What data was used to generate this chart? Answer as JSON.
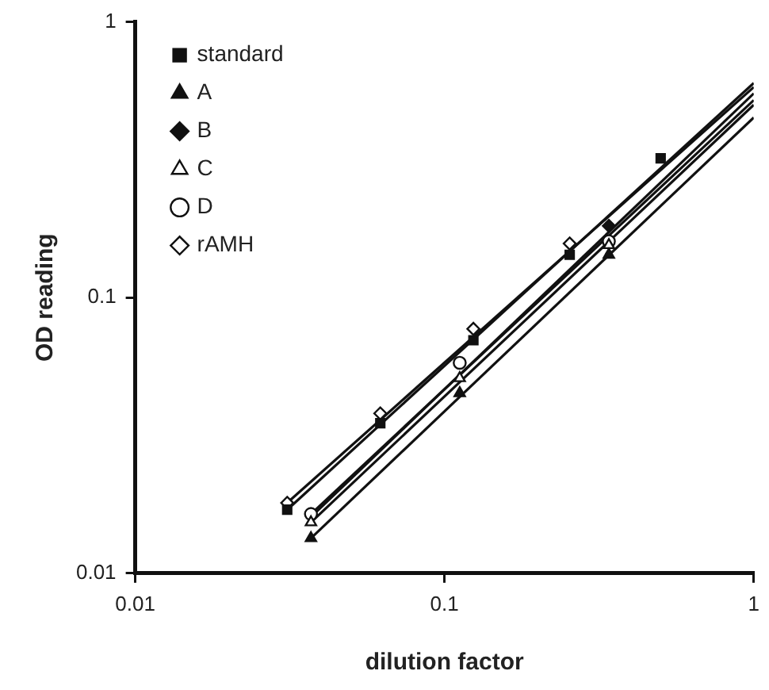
{
  "chart_data": {
    "type": "scatter",
    "xlabel": "dilution factor",
    "ylabel": "OD reading",
    "log": "xy",
    "xlim": [
      0.01,
      1
    ],
    "xticks": [
      0.01,
      0.1,
      1
    ],
    "ylim": [
      0.01,
      1
    ],
    "yticks": [
      0.01,
      0.1,
      1
    ],
    "grid": false,
    "legend": "top left",
    "series": [
      {
        "name": "standard",
        "color": "#111111",
        "marker": "square",
        "x": [
          0.031,
          0.062,
          0.124,
          0.254,
          0.5
        ],
        "values": [
          0.017,
          0.035,
          0.07,
          0.143,
          0.32
        ]
      },
      {
        "name": "A",
        "color": "#111111",
        "marker": "triangle",
        "x": [
          0.037,
          0.112,
          0.34
        ],
        "values": [
          0.0134,
          0.045,
          0.143
        ]
      },
      {
        "name": "B",
        "color": "#111111",
        "marker": "diamond",
        "x": [
          0.34
        ],
        "values": [
          0.182
        ]
      },
      {
        "name": "C",
        "color": "#ffffff",
        "marker": "triangle",
        "x": [
          0.037,
          0.112,
          0.34
        ],
        "values": [
          0.0153,
          0.051,
          0.155
        ]
      },
      {
        "name": "D",
        "color": "#ffffff",
        "marker": "circle",
        "x": [
          0.037,
          0.112,
          0.34
        ],
        "values": [
          0.0164,
          0.058,
          0.16
        ]
      },
      {
        "name": "rAMH",
        "color": "#ffffff",
        "marker": "diamond",
        "x": [
          0.031,
          0.062,
          0.124,
          0.254
        ],
        "values": [
          0.018,
          0.038,
          0.077,
          0.157
        ]
      },
      {
        "type": "line",
        "color": "#111111",
        "marker": "none",
        "x": [
          0.031,
          1
        ],
        "values": [
          0.017,
          0.6
        ]
      },
      {
        "type": "line",
        "color": "#111111",
        "marker": "none",
        "x": [
          0.037,
          1
        ],
        "values": [
          0.0134,
          0.45
        ]
      },
      {
        "type": "line",
        "color": "#111111",
        "marker": "none",
        "x": [
          0.037,
          1
        ],
        "values": [
          0.016,
          0.55
        ]
      },
      {
        "type": "line",
        "color": "#111111",
        "marker": "none",
        "x": [
          0.037,
          1
        ],
        "values": [
          0.0153,
          0.5
        ]
      },
      {
        "type": "line",
        "color": "#111111",
        "marker": "none",
        "x": [
          0.037,
          1
        ],
        "values": [
          0.0164,
          0.52
        ]
      },
      {
        "type": "line",
        "color": "#111111",
        "marker": "none",
        "x": [
          0.031,
          1
        ],
        "values": [
          0.018,
          0.58
        ]
      }
    ]
  }
}
